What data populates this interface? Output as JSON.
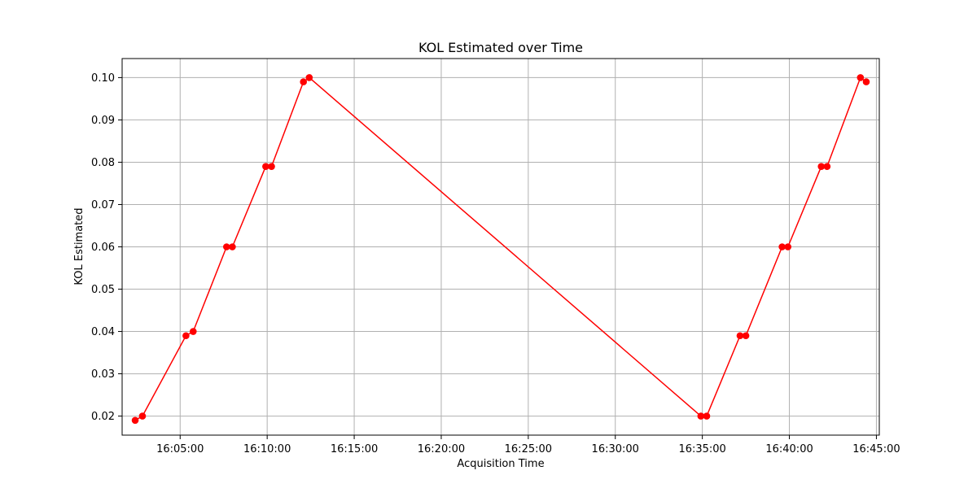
{
  "chart_data": {
    "type": "line",
    "title": "KOL Estimated over Time",
    "xlabel": "Acquisition Time",
    "ylabel": "KOL Estimated",
    "xlim": [
      "16:01:40",
      "16:45:10"
    ],
    "ylim": [
      0.0155,
      0.1045
    ],
    "grid": true,
    "x_ticks": [
      "16:05:00",
      "16:10:00",
      "16:15:00",
      "16:20:00",
      "16:25:00",
      "16:30:00",
      "16:35:00",
      "16:40:00",
      "16:45:00"
    ],
    "y_ticks": [
      "0.02",
      "0.03",
      "0.04",
      "0.05",
      "0.06",
      "0.07",
      "0.08",
      "0.09",
      "0.10"
    ],
    "series": [
      {
        "color": "#ff0000",
        "marker": "circle",
        "x": [
          "16:02:25",
          "16:02:50",
          "16:05:20",
          "16:05:45",
          "16:07:40",
          "16:08:00",
          "16:09:55",
          "16:10:15",
          "16:12:05",
          "16:12:25",
          "16:34:55",
          "16:35:15",
          "16:37:10",
          "16:37:30",
          "16:39:35",
          "16:39:55",
          "16:41:50",
          "16:42:10",
          "16:44:05",
          "16:44:25"
        ],
        "y": [
          0.019,
          0.02,
          0.039,
          0.04,
          0.06,
          0.06,
          0.079,
          0.079,
          0.099,
          0.1,
          0.02,
          0.02,
          0.039,
          0.039,
          0.06,
          0.06,
          0.079,
          0.079,
          0.1,
          0.099
        ]
      }
    ]
  }
}
